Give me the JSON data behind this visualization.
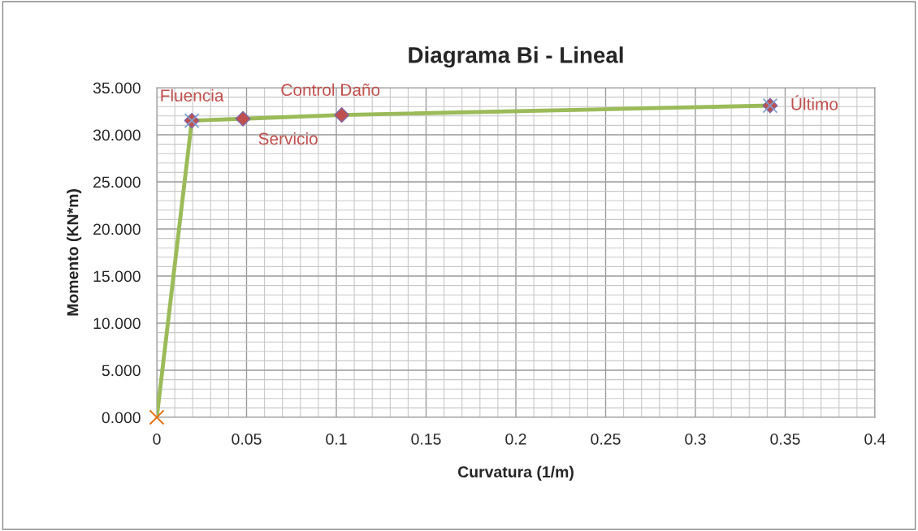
{
  "chart_data": {
    "type": "line",
    "title": "Diagrama Bi - Lineal",
    "xlabel": "Curvatura (1/m)",
    "ylabel": "Momento (KN*m)",
    "series": [
      {
        "color": "#9bbb59",
        "x": [
          0,
          0.0195,
          0.048,
          0.103,
          0.3416
        ],
        "values": [
          0,
          31.5,
          31.7,
          32.1,
          33.1
        ],
        "marker": "none"
      },
      {
        "type": "scatter",
        "color": "#c0504d",
        "x": [
          0.0195,
          0.048,
          0.103,
          0.3416
        ],
        "values": [
          31.5,
          31.7,
          32.1,
          33.1
        ],
        "marker": "diamond"
      },
      {
        "type": "scatter",
        "color": "#e46c0a",
        "x": [
          0
        ],
        "values": [
          0
        ],
        "marker": "cross"
      },
      {
        "type": "scatter",
        "color": "#7f9fcf",
        "x": [
          0.0195,
          0.3416
        ],
        "values": [
          31.5,
          33.1
        ],
        "marker": "cross"
      }
    ],
    "annotations": [
      {
        "text": "Fluencia",
        "x": 0.0195,
        "y": 31.5
      },
      {
        "text": "Control Daño",
        "x": 0.103,
        "y": 32.1
      },
      {
        "text": "Servicio",
        "x": 0.048,
        "y": 31.7
      },
      {
        "text": "Último",
        "x": 0.3416,
        "y": 33.1
      }
    ],
    "xlim": [
      0,
      0.4
    ],
    "xticks": [
      0,
      0.05,
      0.1,
      0.15,
      0.2,
      0.25,
      0.3,
      0.35,
      0.4
    ],
    "ylim": [
      0,
      35
    ],
    "yticks": [
      {
        "value": 0,
        "label": "0.000"
      },
      {
        "value": 5,
        "label": "5.000"
      },
      {
        "value": 10,
        "label": "10.000"
      },
      {
        "value": 15,
        "label": "15.000"
      },
      {
        "value": 20,
        "label": "20.000"
      },
      {
        "value": 25,
        "label": "25.000"
      },
      {
        "value": 30,
        "label": "30.000"
      },
      {
        "value": 35,
        "label": "35.000"
      }
    ],
    "grid": true
  }
}
